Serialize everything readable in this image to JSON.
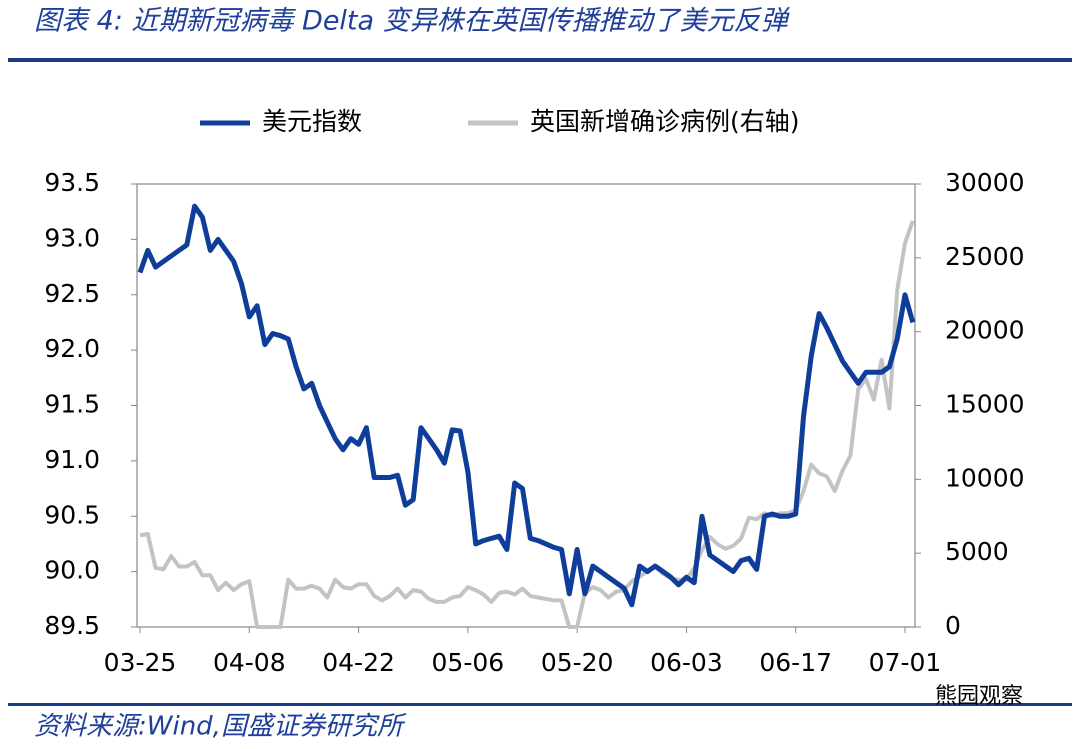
{
  "chart_data": {
    "type": "line",
    "title": "图表 4:  近期新冠病毒 Delta 变异株在英国传播推动了美元反弹",
    "source": "资料来源:Wind,国盛证券研究所",
    "watermark": "熊园观察",
    "x": [
      "03-25",
      "03-26",
      "03-27",
      "03-28",
      "03-29",
      "03-30",
      "03-31",
      "04-01",
      "04-02",
      "04-03",
      "04-04",
      "04-05",
      "04-06",
      "04-07",
      "04-08",
      "04-09",
      "04-10",
      "04-11",
      "04-12",
      "04-13",
      "04-14",
      "04-15",
      "04-16",
      "04-17",
      "04-18",
      "04-19",
      "04-20",
      "04-21",
      "04-22",
      "04-23",
      "04-24",
      "04-25",
      "04-26",
      "04-27",
      "04-28",
      "04-29",
      "04-30",
      "05-01",
      "05-02",
      "05-03",
      "05-04",
      "05-05",
      "05-06",
      "05-07",
      "05-08",
      "05-09",
      "05-10",
      "05-11",
      "05-12",
      "05-13",
      "05-14",
      "05-15",
      "05-16",
      "05-17",
      "05-18",
      "05-19",
      "05-20",
      "05-21",
      "05-22",
      "05-23",
      "05-24",
      "05-25",
      "05-26",
      "05-27",
      "05-28",
      "05-29",
      "05-30",
      "05-31",
      "06-01",
      "06-02",
      "06-03",
      "06-04",
      "06-05",
      "06-06",
      "06-07",
      "06-08",
      "06-09",
      "06-10",
      "06-11",
      "06-12",
      "06-13",
      "06-14",
      "06-15",
      "06-16",
      "06-17",
      "06-18",
      "06-19",
      "06-20",
      "06-21",
      "06-22",
      "06-23",
      "06-24",
      "06-25",
      "06-26",
      "06-27",
      "06-28",
      "06-29",
      "06-30",
      "07-01",
      "07-02"
    ],
    "xticks": [
      "03-25",
      "04-08",
      "04-22",
      "05-06",
      "05-20",
      "06-03",
      "06-17",
      "07-01"
    ],
    "series": [
      {
        "name": "美元指数",
        "color": "#0f3e9a",
        "values": [
          92.7,
          92.9,
          92.75,
          92.8,
          92.85,
          92.9,
          92.95,
          93.3,
          93.2,
          92.9,
          93.0,
          92.9,
          92.8,
          92.6,
          92.3,
          92.4,
          92.05,
          92.15,
          92.13,
          92.1,
          91.85,
          91.65,
          91.7,
          91.5,
          91.35,
          91.2,
          91.1,
          91.2,
          91.15,
          91.3,
          90.85,
          90.85,
          90.85,
          90.87,
          90.6,
          90.65,
          91.3,
          91.2,
          91.1,
          90.98,
          91.28,
          91.27,
          90.9,
          90.25,
          90.28,
          90.3,
          90.32,
          90.2,
          90.8,
          90.75,
          90.3,
          90.28,
          90.25,
          90.22,
          90.2,
          89.8,
          90.2,
          89.8,
          90.05,
          90.0,
          89.95,
          89.9,
          89.85,
          89.7,
          90.05,
          90.0,
          90.05,
          90.0,
          89.95,
          89.88,
          89.95,
          89.9,
          90.5,
          90.15,
          90.1,
          90.05,
          90.0,
          90.1,
          90.12,
          90.02,
          90.5,
          90.52,
          90.5,
          90.5,
          90.52,
          91.4,
          91.95,
          92.33,
          92.2,
          92.05,
          91.9,
          91.8,
          91.7,
          91.8,
          91.8,
          91.8,
          91.85,
          92.1,
          92.5,
          92.25
        ]
      },
      {
        "name": "英国新增确诊病例(右轴)",
        "color": "#c3c3c3",
        "axis": "y2",
        "values": [
          6200,
          6300,
          4000,
          3900,
          4800,
          4100,
          4100,
          4400,
          3500,
          3500,
          2500,
          3000,
          2500,
          2900,
          3100,
          0,
          0,
          0,
          0,
          3200,
          2600,
          2600,
          2800,
          2600,
          2000,
          3200,
          2700,
          2600,
          2900,
          2900,
          2100,
          1800,
          2100,
          2600,
          2000,
          2500,
          2400,
          1900,
          1700,
          1700,
          2000,
          2100,
          2700,
          2500,
          2200,
          1700,
          2300,
          2400,
          2200,
          2600,
          2100,
          2000,
          1900,
          1800,
          1800,
          0,
          0,
          2300,
          2700,
          2500,
          2000,
          2400,
          2500,
          3100,
          3400,
          3800,
          4100,
          3600,
          3300,
          3200,
          3200,
          4000,
          5200,
          6100,
          5600,
          5300,
          5500,
          6000,
          7400,
          7300,
          7700,
          7500,
          7700,
          7700,
          7900,
          9200,
          11000,
          10400,
          10200,
          9200,
          10600,
          11600,
          16100,
          16800,
          15400,
          18100,
          14800,
          22800,
          26000,
          27500
        ]
      }
    ],
    "ylim": [
      89.5,
      93.5
    ],
    "yticks": [
      {
        "value": 89.5,
        "label": "89.5"
      },
      {
        "value": 90,
        "label": "90.0"
      },
      {
        "value": 90.5,
        "label": "90.5"
      },
      {
        "value": 91,
        "label": "91.0"
      },
      {
        "value": 91.5,
        "label": "91.5"
      },
      {
        "value": 92,
        "label": "92.0"
      },
      {
        "value": 92.5,
        "label": "92.5"
      },
      {
        "value": 93,
        "label": "93.0"
      },
      {
        "value": 93.5,
        "label": "93.5"
      }
    ],
    "y2lim": [
      0,
      30000
    ],
    "y2ticks": [
      0,
      5000,
      10000,
      15000,
      20000,
      25000,
      30000
    ],
    "legend": "top"
  }
}
